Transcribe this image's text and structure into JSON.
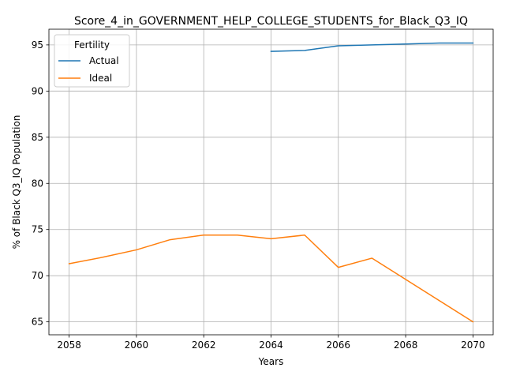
{
  "chart_data": {
    "type": "line",
    "title": "Score_4_in_GOVERNMENT_HELP_COLLEGE_STUDENTS_for_Black_Q3_IQ",
    "xlabel": "Years",
    "ylabel": "% of Black Q3_IQ Population",
    "xlim": [
      2057.4,
      2070.6
    ],
    "ylim": [
      63.6,
      96.7
    ],
    "xticks": [
      2058,
      2060,
      2062,
      2064,
      2066,
      2068,
      2070
    ],
    "yticks": [
      65,
      70,
      75,
      80,
      85,
      90,
      95
    ],
    "grid": true,
    "legend": {
      "title": "Fertility",
      "placement": "upper-left"
    },
    "series": [
      {
        "name": "Actual",
        "color": "#1f77b4",
        "x": [
          2064,
          2065,
          2066,
          2067,
          2068,
          2069,
          2070
        ],
        "y": [
          94.3,
          94.4,
          94.9,
          95.0,
          95.1,
          95.2,
          95.2
        ]
      },
      {
        "name": "Ideal",
        "color": "#ff7f0e",
        "x": [
          2058,
          2059,
          2060,
          2061,
          2062,
          2063,
          2064,
          2065,
          2066,
          2067,
          2068,
          2069,
          2070
        ],
        "y": [
          71.3,
          72.0,
          72.8,
          73.9,
          74.4,
          74.4,
          74.0,
          74.4,
          70.9,
          71.9,
          69.6,
          67.3,
          65.0
        ]
      }
    ]
  }
}
